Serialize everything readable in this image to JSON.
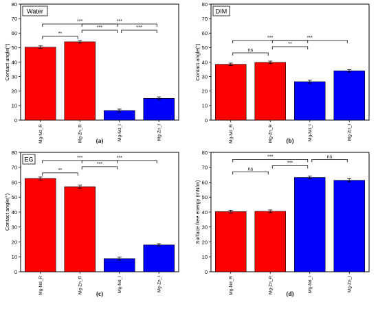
{
  "chart_data": [
    {
      "type": "bar",
      "panel_label": "(a)",
      "inset_label": "Water",
      "ylabel": "Contact angle(°)",
      "ylim": [
        0,
        80
      ],
      "yticks": [
        0,
        10,
        20,
        30,
        40,
        50,
        60,
        70,
        80
      ],
      "categories": [
        "Mg-Nd_R",
        "Mg-Zn_R",
        "Mg-Nd_I",
        "Mg-Zn_I"
      ],
      "values": [
        50.3,
        54.0,
        6.6,
        15.0
      ],
      "errors": [
        0.9,
        0.9,
        1.0,
        1.0
      ],
      "bar_colors": [
        "#ff0000",
        "#ff0000",
        "#0000ff",
        "#0000ff"
      ],
      "significance": [
        {
          "from": 0,
          "to": 1,
          "label": "**",
          "level": 1
        },
        {
          "from": 1,
          "to": 2,
          "label": "***",
          "level": 2
        },
        {
          "from": 2,
          "to": 3,
          "label": "***",
          "level": 2
        },
        {
          "from": 0,
          "to": 2,
          "label": "***",
          "level": 3
        },
        {
          "from": 1,
          "to": 3,
          "label": "***",
          "level": 3
        }
      ]
    },
    {
      "type": "bar",
      "panel_label": "(b)",
      "inset_label": "DIM",
      "ylabel": "Contact angle(°)",
      "ylim": [
        0,
        80
      ],
      "yticks": [
        0,
        10,
        20,
        30,
        40,
        50,
        60,
        70,
        80
      ],
      "categories": [
        "Mg-Nd_R",
        "Mg-Zn_R",
        "Mg-Nd_I",
        "Mg-Zn_I"
      ],
      "values": [
        38.5,
        39.8,
        26.5,
        34.0
      ],
      "errors": [
        0.8,
        0.9,
        1.0,
        0.8
      ],
      "bar_colors": [
        "#ff0000",
        "#ff0000",
        "#0000ff",
        "#0000ff"
      ],
      "significance": [
        {
          "from": 0,
          "to": 1,
          "label": "ns",
          "level": 1
        },
        {
          "from": 1,
          "to": 2,
          "label": "**",
          "level": 2
        },
        {
          "from": 0,
          "to": 2,
          "label": "***",
          "level": 3
        },
        {
          "from": 1,
          "to": 3,
          "label": "***",
          "level": 3
        }
      ]
    },
    {
      "type": "bar",
      "panel_label": "(c)",
      "inset_label": "EG",
      "ylabel": "Contact angle(°)",
      "ylim": [
        0,
        80
      ],
      "yticks": [
        0,
        10,
        20,
        30,
        40,
        50,
        60,
        70,
        80
      ],
      "categories": [
        "Mg-Nd_R",
        "Mg-Zn_R",
        "Mg-Nd_I",
        "Mg-Zn_I"
      ],
      "values": [
        62.5,
        57.0,
        8.8,
        18.0
      ],
      "errors": [
        1.0,
        1.0,
        1.0,
        0.8
      ],
      "bar_colors": [
        "#ff0000",
        "#ff0000",
        "#0000ff",
        "#0000ff"
      ],
      "significance": [
        {
          "from": 0,
          "to": 1,
          "label": "**",
          "level": 1
        },
        {
          "from": 1,
          "to": 2,
          "label": "***",
          "level": 2
        },
        {
          "from": 0,
          "to": 2,
          "label": "***",
          "level": 3
        },
        {
          "from": 1,
          "to": 3,
          "label": "***",
          "level": 3
        }
      ]
    },
    {
      "type": "bar",
      "panel_label": "(d)",
      "inset_label": "",
      "ylabel": "Surface free energy (mN/m)",
      "ylim": [
        0,
        80
      ],
      "yticks": [
        0,
        10,
        20,
        30,
        40,
        50,
        60,
        70,
        80
      ],
      "categories": [
        "Mg-Nd_R",
        "Mg-Zn_R",
        "Mg-Nd_I",
        "Mg-Zn_I"
      ],
      "values": [
        40.3,
        40.5,
        63.2,
        61.3
      ],
      "errors": [
        0.9,
        0.9,
        1.0,
        1.0
      ],
      "bar_colors": [
        "#ff0000",
        "#ff0000",
        "#0000ff",
        "#0000ff"
      ],
      "significance": [
        {
          "from": 0,
          "to": 1,
          "label": "ns",
          "level": 1
        },
        {
          "from": 1,
          "to": 2,
          "label": "***",
          "level": 2
        },
        {
          "from": 2,
          "to": 3,
          "label": "ns",
          "level": 3
        },
        {
          "from": 0,
          "to": 2,
          "label": "***",
          "level": 3
        }
      ]
    }
  ]
}
